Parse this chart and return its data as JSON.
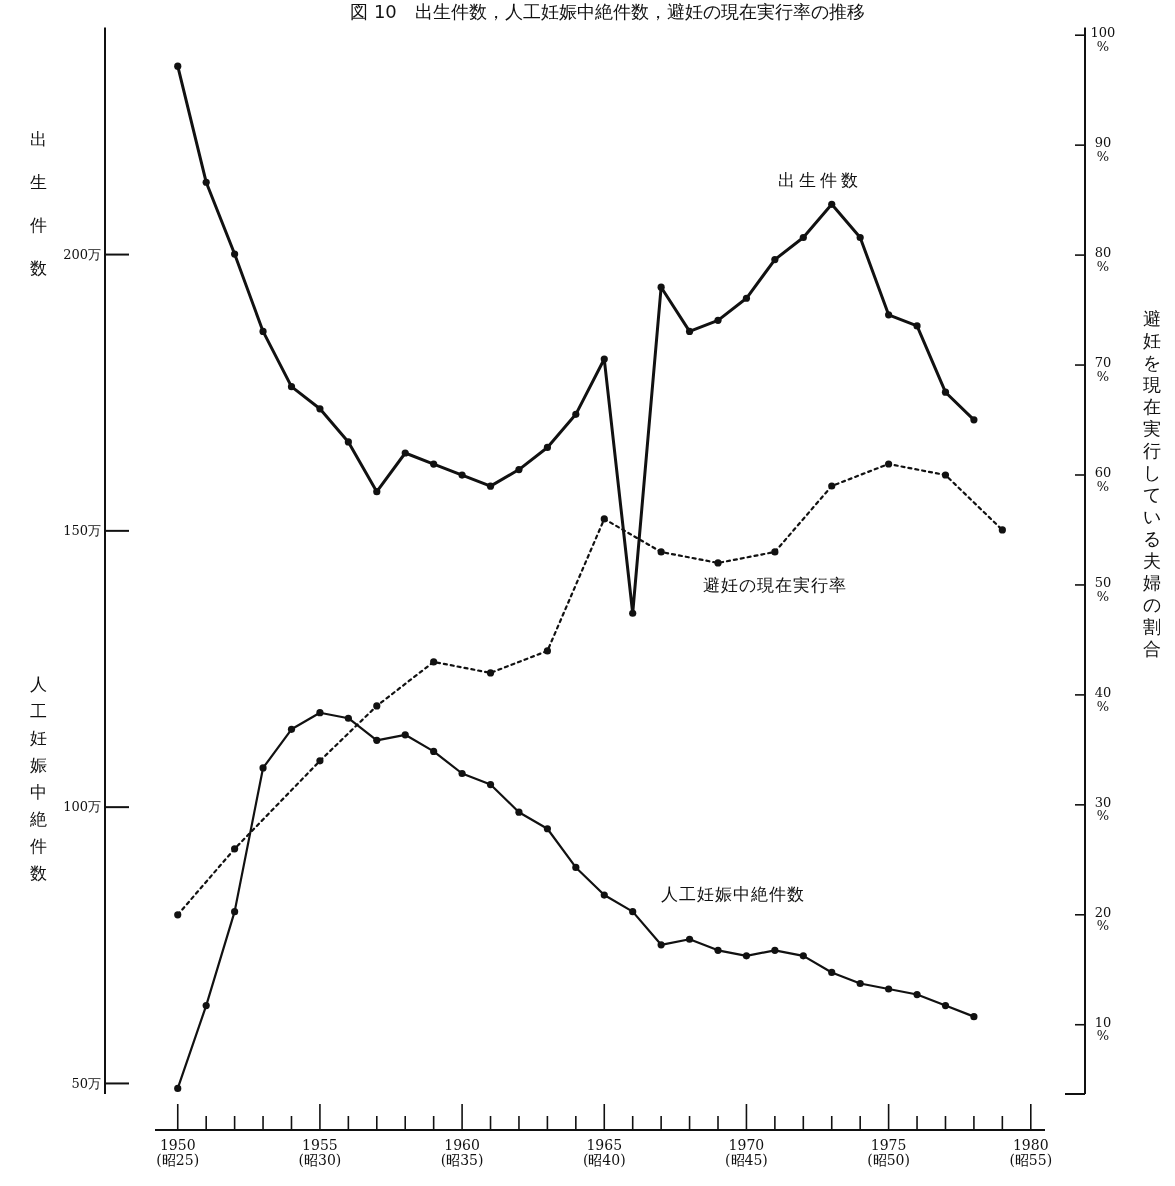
{
  "chart_data": {
    "type": "line",
    "title": "図 10　出生件数，人工妊娠中絶件数，避妊の現在実行率の推移",
    "ylabel": "出生件数",
    "y2label": "避妊を現在実行している夫婦の割合",
    "annotations": [
      "人工妊娠中絶件数",
      "(昭25)",
      "(昭30)",
      "(昭35)",
      "(昭40)",
      "(昭45)",
      "(昭50)",
      "(昭55)"
    ],
    "x": [
      1950,
      1951,
      1952,
      1953,
      1954,
      1955,
      1956,
      1957,
      1958,
      1959,
      1960,
      1961,
      1962,
      1963,
      1964,
      1965,
      1966,
      1967,
      1968,
      1969,
      1970,
      1971,
      1972,
      1973,
      1974,
      1975,
      1976,
      1977,
      1978
    ],
    "xlim": [
      1949.2,
      1980.5
    ],
    "xticks": [
      1950,
      {
        "value": 1951,
        "label": null
      },
      {
        "value": 1952,
        "label": null
      },
      {
        "value": 1953,
        "label": null
      },
      {
        "value": 1954,
        "label": null
      },
      1955,
      {
        "value": 1956,
        "label": null
      },
      {
        "value": 1957,
        "label": null
      },
      {
        "value": 1958,
        "label": null
      },
      {
        "value": 1959,
        "label": null
      },
      1960,
      {
        "value": 1961,
        "label": null
      },
      {
        "value": 1962,
        "label": null
      },
      {
        "value": 1963,
        "label": null
      },
      {
        "value": 1964,
        "label": null
      },
      1965,
      {
        "value": 1966,
        "label": null
      },
      {
        "value": 1967,
        "label": null
      },
      {
        "value": 1968,
        "label": null
      },
      {
        "value": 1969,
        "label": null
      },
      1970,
      {
        "value": 1971,
        "label": null
      },
      {
        "value": 1972,
        "label": null
      },
      {
        "value": 1973,
        "label": null
      },
      {
        "value": 1974,
        "label": null
      },
      1975,
      {
        "value": 1976,
        "label": null
      },
      {
        "value": 1977,
        "label": null
      },
      {
        "value": 1978,
        "label": null
      },
      {
        "value": 1979,
        "label": null
      },
      1980
    ],
    "ylim": [
      48,
      241
    ],
    "yticks": [
      {
        "value": 50,
        "label": "50万"
      },
      {
        "value": 100,
        "label": "100万"
      },
      {
        "value": 150,
        "label": "150万"
      },
      {
        "value": 200,
        "label": "200万"
      }
    ],
    "y2lim": [
      3.7,
      100.7
    ],
    "y2ticks": [
      {
        "value": 10,
        "label": "10\n%"
      },
      {
        "value": 20,
        "label": "20\n%"
      },
      {
        "value": 30,
        "label": "30\n%"
      },
      {
        "value": 40,
        "label": "40\n%"
      },
      {
        "value": 50,
        "label": "50\n%"
      },
      {
        "value": 60,
        "label": "60\n%"
      },
      {
        "value": 70,
        "label": "70\n%"
      },
      {
        "value": 80,
        "label": "80\n%"
      },
      {
        "value": 90,
        "label": "90\n%"
      },
      {
        "value": 100,
        "label": "100\n%"
      }
    ],
    "marker": "circle",
    "series": [
      {
        "name": "出生件数",
        "color": "#111111",
        "line_style": "solid",
        "values": [
          234,
          213,
          200,
          186,
          176,
          172,
          166,
          157,
          164,
          162,
          160,
          158,
          161,
          165,
          171,
          181,
          135,
          194,
          186,
          188,
          192,
          199,
          203,
          209,
          203,
          189,
          187,
          175,
          170
        ]
      },
      {
        "name": "人工妊娠中絶件数",
        "color": "#111111",
        "line_style": "solid",
        "values": [
          49,
          64,
          81,
          107,
          114,
          117,
          116,
          112,
          113,
          110,
          106,
          104,
          99,
          96,
          89,
          84,
          81,
          75,
          76,
          74,
          73,
          74,
          73,
          70,
          68,
          67,
          66,
          64,
          62
        ]
      },
      {
        "name": "避妊の現在実行率",
        "color": "#111111",
        "line_style": "dotted",
        "axis": "y2",
        "x": [
          1950,
          1952,
          1955,
          1957,
          1959,
          1961,
          1963,
          1965,
          1967,
          1969,
          1971,
          1973,
          1975,
          1977,
          1979
        ],
        "values": [
          20,
          26,
          34,
          39,
          43,
          42,
          44,
          56,
          53,
          52,
          53,
          59,
          61,
          60,
          55
        ]
      }
    ]
  }
}
